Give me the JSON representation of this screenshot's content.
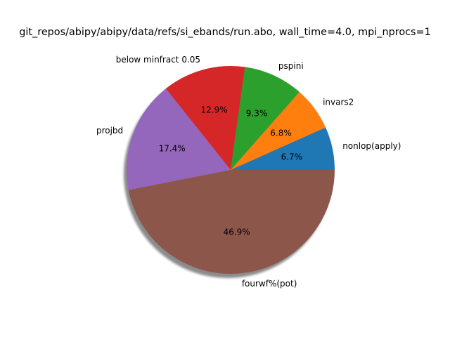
{
  "chart_data": {
    "type": "pie",
    "title": "git_repos/abipy/abipy/data/refs/si_ebands/run.abo, wall_time=4.0, mpi_nprocs=1",
    "shadow": true,
    "slices": [
      {
        "label": "nonlop(apply)",
        "value": 6.7,
        "pct_label": "6.7%",
        "color": "#1f77b4"
      },
      {
        "label": "invars2",
        "value": 6.8,
        "pct_label": "6.8%",
        "color": "#ff7f0e"
      },
      {
        "label": "pspini",
        "value": 9.3,
        "pct_label": "9.3%",
        "color": "#2ca02c"
      },
      {
        "label": "below minfract 0.05",
        "value": 12.9,
        "pct_label": "12.9%",
        "color": "#d62728"
      },
      {
        "label": "projbd",
        "value": 17.4,
        "pct_label": "17.4%",
        "color": "#9467bd"
      },
      {
        "label": "fourwf%(pot)",
        "value": 46.9,
        "pct_label": "46.9%",
        "color": "#8c564b"
      }
    ]
  }
}
